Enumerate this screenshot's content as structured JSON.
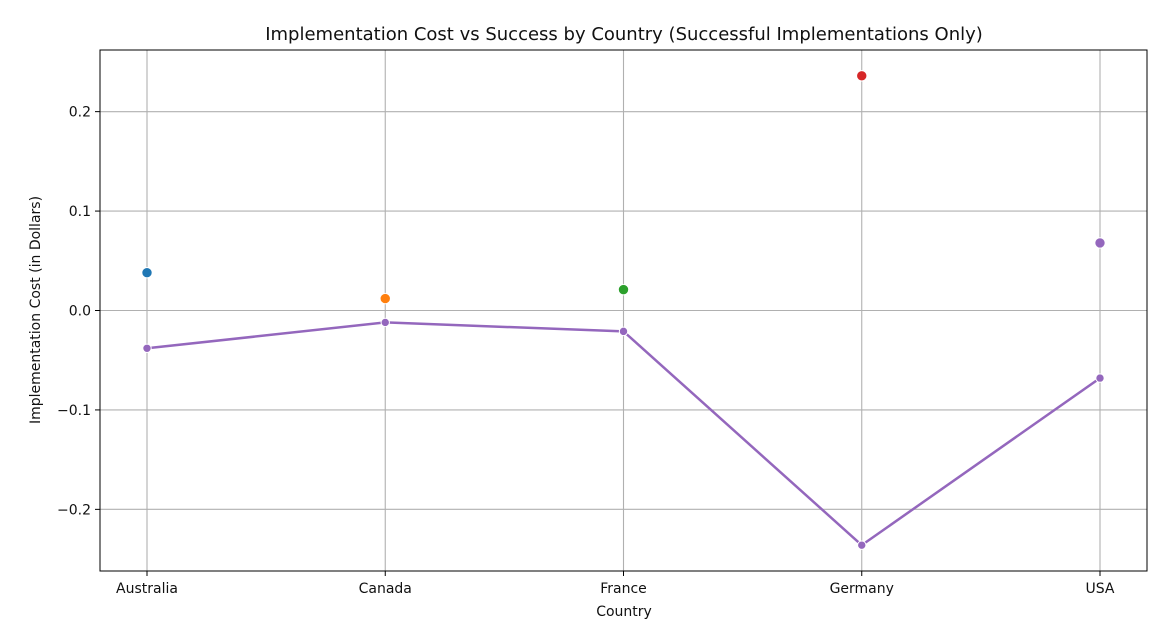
{
  "chart_data": {
    "type": "scatter",
    "title": "Implementation Cost vs Success by Country (Successful Implementations Only)",
    "xlabel": "Country",
    "ylabel": "Implementation Cost (in Dollars)",
    "categories": [
      "Australia",
      "Canada",
      "France",
      "Germany",
      "USA"
    ],
    "ylim": [
      -0.262,
      0.262
    ],
    "yticks": [
      {
        "value": -0.2,
        "label": "−0.2"
      },
      {
        "value": -0.1,
        "label": "−0.1"
      },
      {
        "value": 0.0,
        "label": "0.0"
      },
      {
        "value": 0.1,
        "label": "0.1"
      },
      {
        "value": 0.2,
        "label": "0.2"
      }
    ],
    "grid": true,
    "legend": "none",
    "series": [
      {
        "kind": "points",
        "values": [
          0.038,
          0.012,
          0.021,
          0.236,
          0.068
        ],
        "colors": [
          "#1f77b4",
          "#ff7f0e",
          "#2ca02c",
          "#d62728",
          "#9467bd"
        ]
      },
      {
        "kind": "line",
        "values": [
          -0.038,
          -0.012,
          -0.021,
          -0.236,
          -0.068
        ],
        "color": "#9467bd"
      }
    ]
  }
}
